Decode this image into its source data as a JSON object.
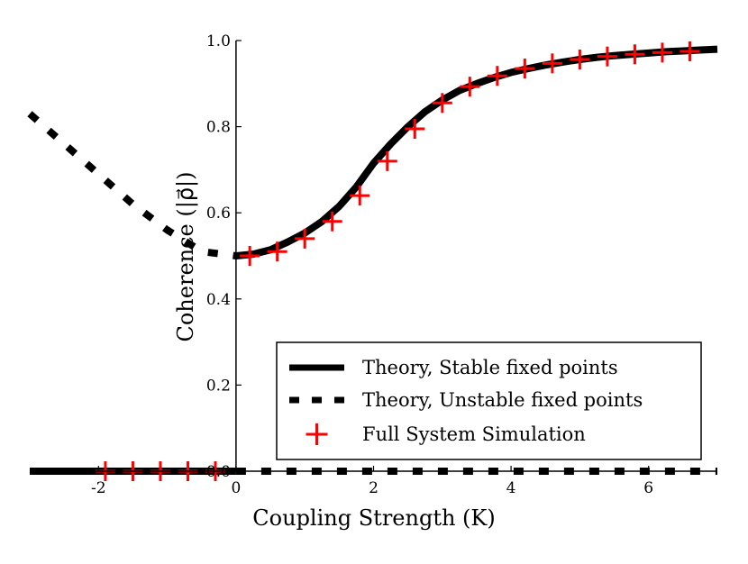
{
  "chart_data": {
    "type": "line",
    "title": "",
    "xlabel": "Coupling Strength (K)",
    "ylabel": "Coherence (|ρ⃗|)",
    "xlim": [
      -3,
      7
    ],
    "ylim": [
      0.0,
      1.0
    ],
    "x_ticks": [
      -2,
      0,
      2,
      4,
      6
    ],
    "y_ticks": [
      0.0,
      0.2,
      0.4,
      0.6,
      0.8,
      1.0
    ],
    "x_tick_labels": [
      "-2",
      "0",
      "2",
      "4",
      "6"
    ],
    "y_tick_labels": [
      "0.0",
      "0.2",
      "0.4",
      "0.6",
      "0.8",
      "1.0"
    ],
    "grid": false,
    "legend_position": "bottom-right",
    "series": [
      {
        "name": "Theory, Stable fixed points",
        "style": "solid",
        "color": "#000000",
        "segments": [
          {
            "x": [
              -3,
              0
            ],
            "y": [
              0.0,
              0.0
            ]
          },
          {
            "x": [
              0.0,
              0.25,
              0.5,
              0.75,
              1.0,
              1.25,
              1.5,
              1.75,
              2.0,
              2.25,
              2.5,
              2.75,
              3.0,
              3.25,
              3.5,
              3.75,
              4.0,
              4.25,
              4.5,
              4.75,
              5.0,
              5.25,
              5.5,
              5.75,
              6.0,
              6.25,
              6.5,
              6.75,
              7.0
            ],
            "y": [
              0.5,
              0.504,
              0.514,
              0.532,
              0.553,
              0.58,
              0.615,
              0.66,
              0.715,
              0.76,
              0.8,
              0.835,
              0.862,
              0.884,
              0.9,
              0.914,
              0.926,
              0.935,
              0.943,
              0.95,
              0.956,
              0.961,
              0.965,
              0.968,
              0.971,
              0.974,
              0.976,
              0.978,
              0.98
            ]
          }
        ]
      },
      {
        "name": "Theory, Unstable fixed points",
        "style": "dashed",
        "color": "#000000",
        "segments": [
          {
            "x": [
              -3.0,
              -2.5,
              -2.0,
              -1.5,
              -1.0,
              -0.5,
              0.0
            ],
            "y": [
              0.83,
              0.76,
              0.69,
              0.62,
              0.56,
              0.51,
              0.5
            ]
          },
          {
            "x": [
              0,
              7
            ],
            "y": [
              0.0,
              0.0
            ]
          }
        ]
      },
      {
        "name": "Full System Simulation",
        "style": "marker",
        "marker": "+",
        "color": "#ff0000",
        "x": [
          -1.9,
          -1.5,
          -1.1,
          -0.7,
          -0.3,
          0.2,
          0.6,
          1.0,
          1.4,
          1.8,
          2.2,
          2.6,
          3.0,
          3.4,
          3.8,
          4.2,
          4.6,
          5.0,
          5.4,
          5.8,
          6.2,
          6.6
        ],
        "y": [
          0.0,
          0.0,
          0.0,
          0.0,
          0.0,
          0.5,
          0.51,
          0.54,
          0.58,
          0.64,
          0.72,
          0.795,
          0.855,
          0.893,
          0.918,
          0.935,
          0.947,
          0.956,
          0.963,
          0.968,
          0.972,
          0.975
        ]
      }
    ],
    "legend_entries": [
      "Theory, Stable fixed points",
      "Theory, Unstable fixed points",
      "Full System Simulation"
    ]
  }
}
